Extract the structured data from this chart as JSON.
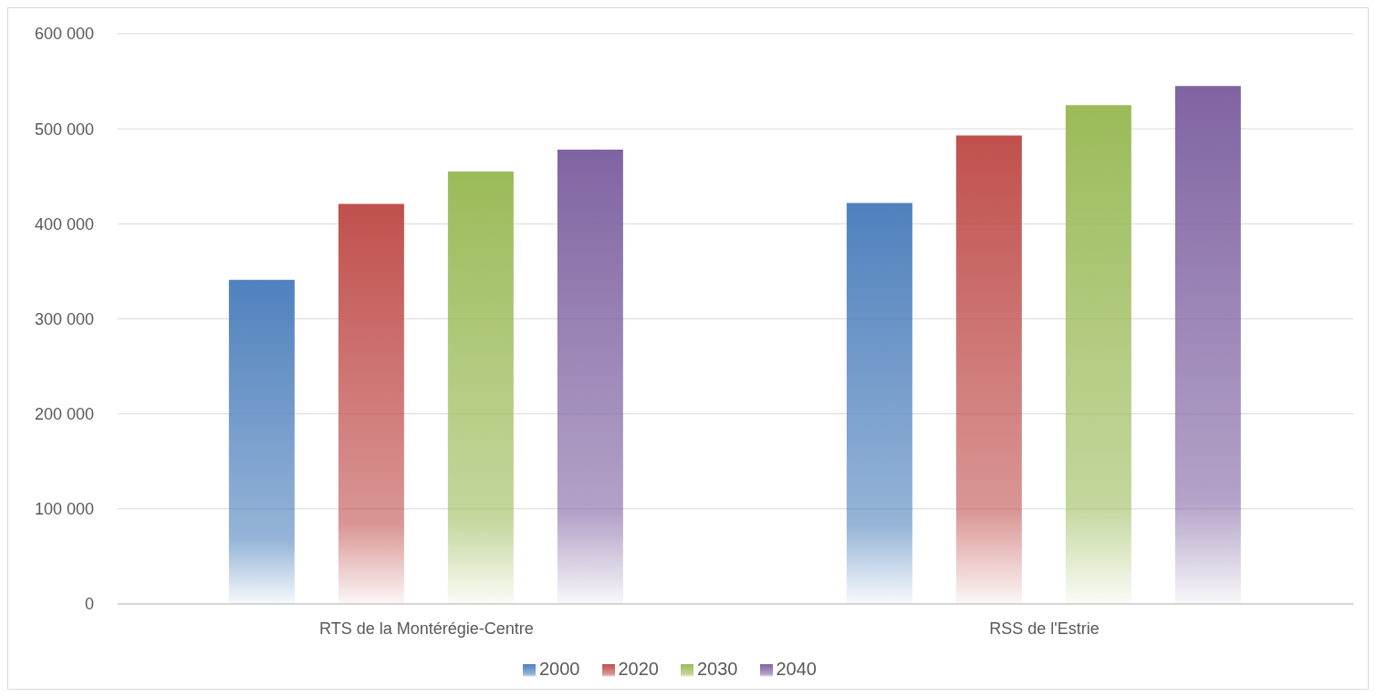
{
  "chart_data": {
    "type": "bar",
    "categories": [
      "RTS de la Montérégie-Centre",
      "RSS de l'Estrie"
    ],
    "series": [
      {
        "name": "2000",
        "color": "#4f81bd",
        "values": [
          341000,
          422000
        ]
      },
      {
        "name": "2020",
        "color": "#c0504d",
        "values": [
          421000,
          493000
        ]
      },
      {
        "name": "2030",
        "color": "#9bbb59",
        "values": [
          455000,
          525000
        ]
      },
      {
        "name": "2040",
        "color": "#8064a2",
        "values": [
          478000,
          545000
        ]
      }
    ],
    "ylim": [
      0,
      600000
    ],
    "yticks": [
      0,
      {
        "value": 100000,
        "label": "100 000"
      },
      {
        "value": 200000,
        "label": "200 000"
      },
      {
        "value": 300000,
        "label": "300 000"
      },
      {
        "value": 400000,
        "label": "400 000"
      },
      {
        "value": 500000,
        "label": "500 000"
      },
      {
        "value": 600000,
        "label": "600 000"
      }
    ],
    "grid": "y",
    "legend": "bottom"
  }
}
